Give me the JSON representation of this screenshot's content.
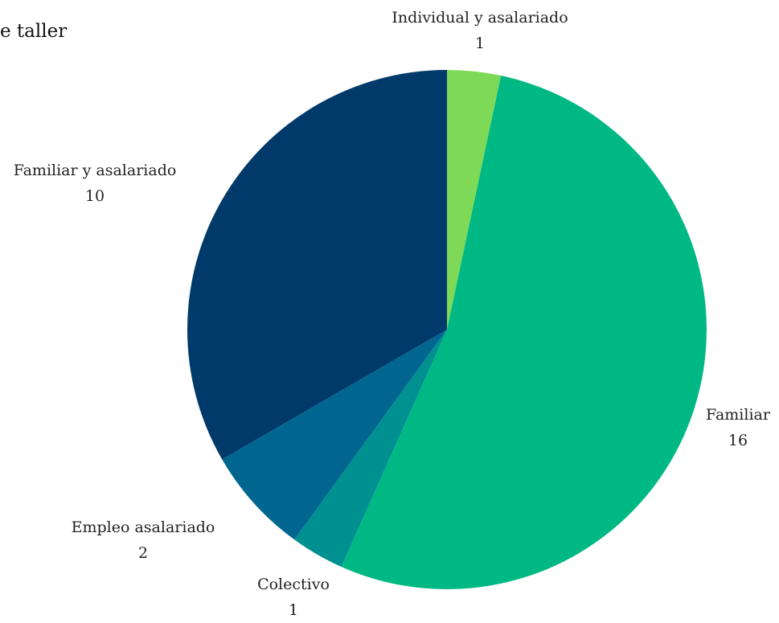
{
  "title_fragment": "e taller",
  "chart_data": {
    "type": "pie",
    "title": "e taller",
    "slices": [
      {
        "label": "Individual y asalariado",
        "value": 1,
        "value_label": "1",
        "color": "#7ed957"
      },
      {
        "label": "Familiar",
        "value": 16,
        "value_label": "16",
        "color": "#00b884"
      },
      {
        "label": "Colectivo",
        "value": 1,
        "value_label": "1",
        "color": "#009090"
      },
      {
        "label": "Empleo asalariado",
        "value": 2,
        "value_label": "2",
        "color": "#006690"
      },
      {
        "label": "Familiar y asalariado",
        "value": 10,
        "value_label": "10",
        "color": "#003a6b"
      }
    ]
  }
}
